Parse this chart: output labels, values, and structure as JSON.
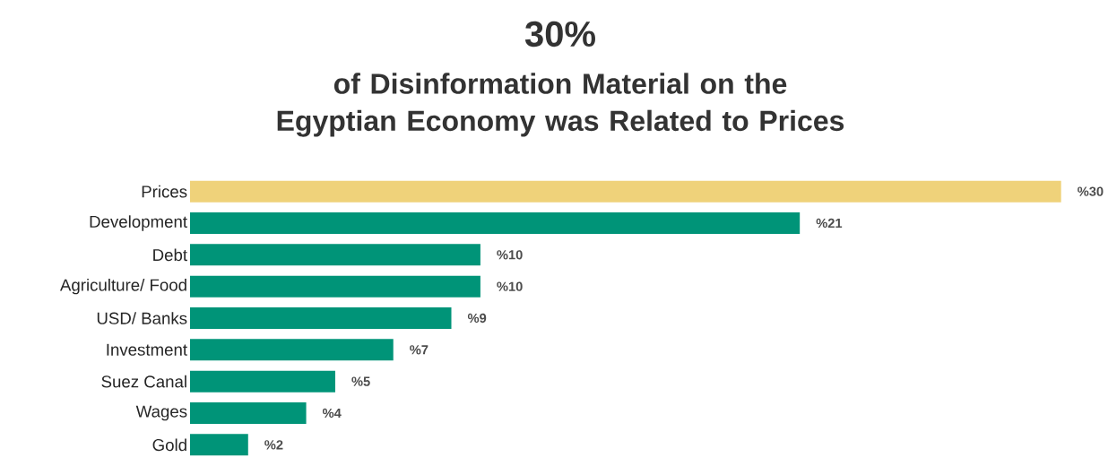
{
  "chart_data": {
    "type": "bar",
    "orientation": "horizontal",
    "title": "30%",
    "subtitle": "of Disinformation Material on the Egyptian Economy was Related to Prices",
    "categories": [
      "Prices",
      "Development",
      "Debt",
      "Agriculture/ Food",
      "USD/ Banks",
      "Investment",
      "Suez Canal",
      "Wages",
      "Gold"
    ],
    "values": [
      30,
      21,
      10,
      10,
      9,
      7,
      5,
      4,
      2
    ],
    "value_labels": [
      "%30",
      "%21",
      "%10",
      "%10",
      "%9",
      "%7",
      "%5",
      "%4",
      "%2"
    ],
    "colors": [
      "#efd27a",
      "#009478",
      "#009478",
      "#009478",
      "#009478",
      "#009478",
      "#009478",
      "#009478",
      "#009478"
    ]
  }
}
